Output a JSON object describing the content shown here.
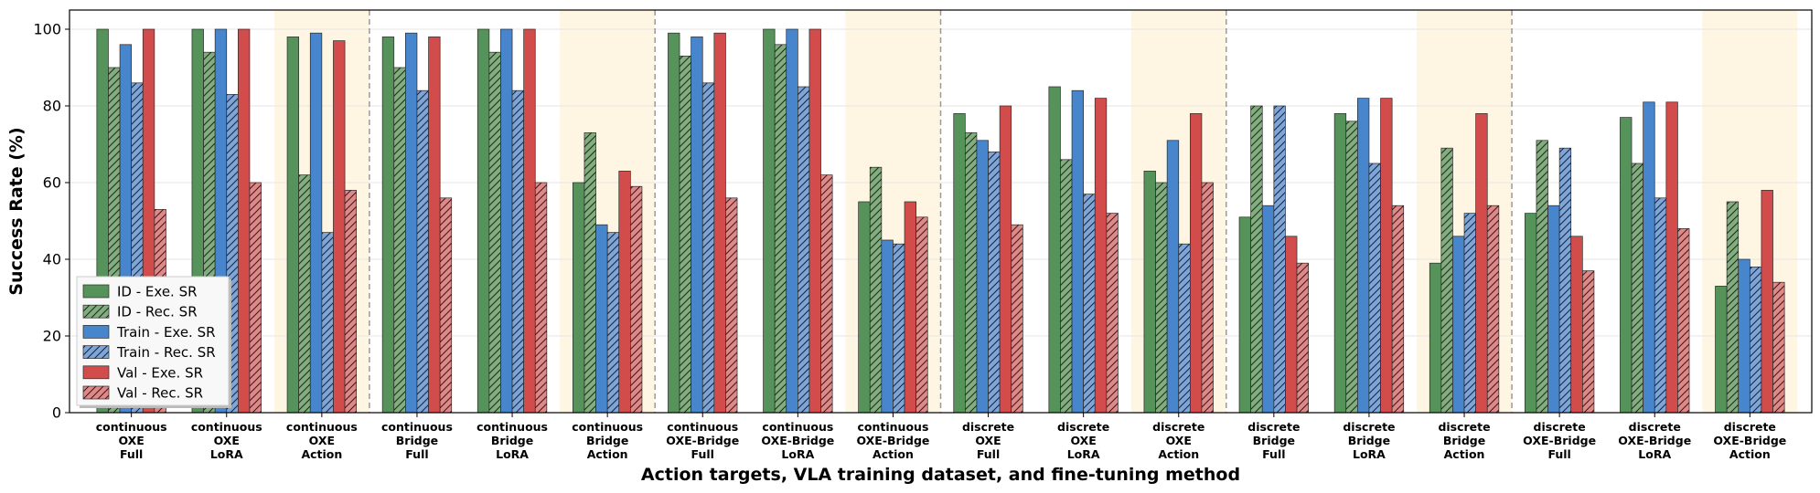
{
  "chart_data": {
    "type": "bar",
    "title": "",
    "xlabel": "Action targets, VLA training dataset, and fine-tuning method",
    "ylabel": "Success Rate (%)",
    "ylim": [
      0,
      105
    ],
    "yticks": [
      0,
      20,
      40,
      60,
      80,
      100
    ],
    "grid": true,
    "legend_position": "bottom-left",
    "categories": [
      [
        "continuous",
        "OXE",
        "Full"
      ],
      [
        "continuous",
        "OXE",
        "LoRA"
      ],
      [
        "continuous",
        "OXE",
        "Action"
      ],
      [
        "continuous",
        "Bridge",
        "Full"
      ],
      [
        "continuous",
        "Bridge",
        "LoRA"
      ],
      [
        "continuous",
        "Bridge",
        "Action"
      ],
      [
        "continuous",
        "OXE-Bridge",
        "Full"
      ],
      [
        "continuous",
        "OXE-Bridge",
        "LoRA"
      ],
      [
        "continuous",
        "OXE-Bridge",
        "Action"
      ],
      [
        "discrete",
        "OXE",
        "Full"
      ],
      [
        "discrete",
        "OXE",
        "LoRA"
      ],
      [
        "discrete",
        "OXE",
        "Action"
      ],
      [
        "discrete",
        "Bridge",
        "Full"
      ],
      [
        "discrete",
        "Bridge",
        "LoRA"
      ],
      [
        "discrete",
        "Bridge",
        "Action"
      ],
      [
        "discrete",
        "OXE-Bridge",
        "Full"
      ],
      [
        "discrete",
        "OXE-Bridge",
        "LoRA"
      ],
      [
        "discrete",
        "OXE-Bridge",
        "Action"
      ]
    ],
    "highlighted_categories": [
      2,
      5,
      8,
      11,
      14,
      17
    ],
    "series": [
      {
        "name": "ID - Exe. SR",
        "color": "#55935a",
        "hatched": false,
        "values": [
          100,
          100,
          98,
          98,
          100,
          60,
          99,
          100,
          55,
          78,
          85,
          63,
          51,
          78,
          39,
          52,
          77,
          33
        ]
      },
      {
        "name": "ID - Rec. SR",
        "color": "#82ad7e",
        "hatched": true,
        "values": [
          90,
          94,
          62,
          90,
          94,
          73,
          93,
          96,
          64,
          73,
          66,
          60,
          80,
          76,
          69,
          71,
          65,
          55
        ]
      },
      {
        "name": "Train - Exe. SR",
        "color": "#4785cc",
        "hatched": false,
        "values": [
          96,
          100,
          99,
          99,
          100,
          49,
          98,
          100,
          45,
          71,
          84,
          71,
          54,
          82,
          46,
          54,
          81,
          40
        ]
      },
      {
        "name": "Train - Rec. SR",
        "color": "#7da5d9",
        "hatched": true,
        "values": [
          86,
          83,
          47,
          84,
          84,
          47,
          86,
          85,
          44,
          68,
          57,
          44,
          80,
          65,
          52,
          69,
          56,
          38
        ]
      },
      {
        "name": "Val - Exe. SR",
        "color": "#d24c4c",
        "hatched": false,
        "values": [
          100,
          100,
          97,
          98,
          100,
          63,
          99,
          100,
          55,
          80,
          82,
          78,
          46,
          82,
          78,
          46,
          81,
          58
        ]
      },
      {
        "name": "Val - Rec. SR",
        "color": "#e08787",
        "hatched": true,
        "values": [
          53,
          60,
          58,
          56,
          60,
          59,
          56,
          62,
          51,
          49,
          52,
          60,
          39,
          54,
          54,
          37,
          48,
          34
        ]
      }
    ]
  }
}
